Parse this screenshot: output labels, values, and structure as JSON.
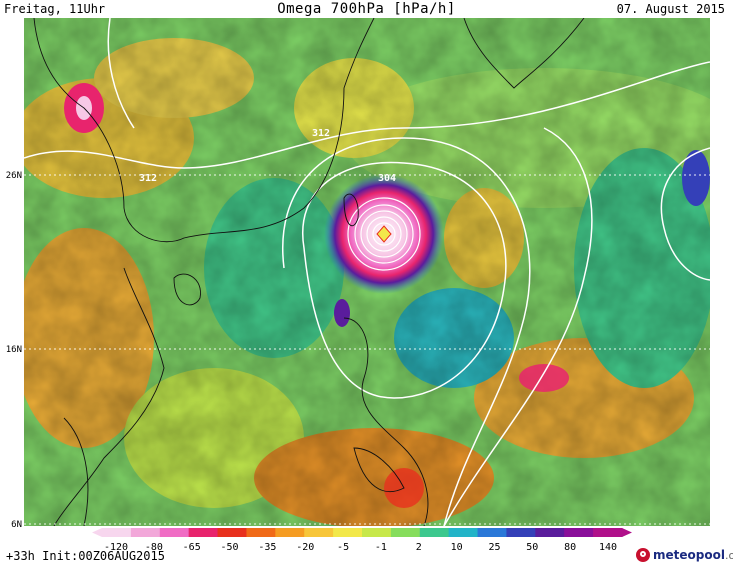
{
  "header": {
    "left": "Freitag, 11Uhr",
    "center": "Omega 700hPa [hPa/h]",
    "right": "07. August 2015"
  },
  "lat_labels": [
    "26N",
    "16N",
    "6N"
  ],
  "contour_labels": [
    "312",
    "312",
    "304"
  ],
  "legend": {
    "ticks": [
      "-120",
      "-80",
      "-65",
      "-50",
      "-35",
      "-20",
      "-5",
      "-1",
      "2",
      "10",
      "25",
      "50",
      "80",
      "140"
    ],
    "colors": [
      "#f7d6ee",
      "#f2a7d9",
      "#f06cc4",
      "#e8246d",
      "#e8301e",
      "#f06a18",
      "#f59c22",
      "#f7c63a",
      "#f2e84a",
      "#c7e84a",
      "#86dd5c",
      "#3cc88e",
      "#22b4c8",
      "#2a78d8",
      "#3440b8",
      "#5a1c9c",
      "#8a0f9a",
      "#b0108a"
    ]
  },
  "footer": {
    "run": "+33h Init:00Z06AUG2015",
    "logo_main": "meteopool",
    "logo_tld": ".org"
  }
}
